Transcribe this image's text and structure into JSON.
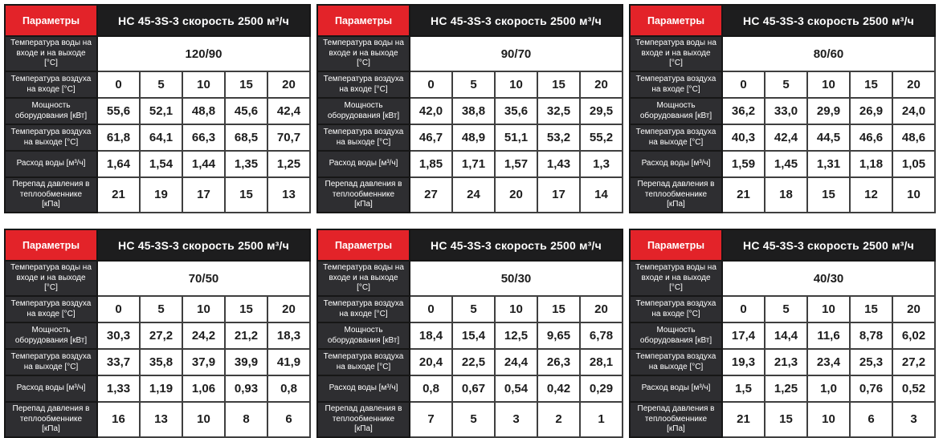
{
  "labels": {
    "parameters": "Параметры",
    "title": "НС 45-3S-3 скорость 2500 м³/ч",
    "water_temp": "Температура воды на входе и на выходе [°С]",
    "air_in": "Температура воздуха на входе [°С]",
    "power": "Мощность оборудования [кВт]",
    "air_out": "Температура воздуха на выходе [°С]",
    "water_flow": "Расход воды [м³/ч]",
    "pressure_drop": "Перепад давления в теплообменнике [кПа]"
  },
  "air_in_values": [
    "0",
    "5",
    "10",
    "15",
    "20"
  ],
  "tables": [
    {
      "water_temp": "120/90",
      "power": [
        "55,6",
        "52,1",
        "48,8",
        "45,6",
        "42,4"
      ],
      "air_out": [
        "61,8",
        "64,1",
        "66,3",
        "68,5",
        "70,7"
      ],
      "water_flow": [
        "1,64",
        "1,54",
        "1,44",
        "1,35",
        "1,25"
      ],
      "pressure_drop": [
        "21",
        "19",
        "17",
        "15",
        "13"
      ]
    },
    {
      "water_temp": "90/70",
      "power": [
        "42,0",
        "38,8",
        "35,6",
        "32,5",
        "29,5"
      ],
      "air_out": [
        "46,7",
        "48,9",
        "51,1",
        "53,2",
        "55,2"
      ],
      "water_flow": [
        "1,85",
        "1,71",
        "1,57",
        "1,43",
        "1,3"
      ],
      "pressure_drop": [
        "27",
        "24",
        "20",
        "17",
        "14"
      ]
    },
    {
      "water_temp": "80/60",
      "power": [
        "36,2",
        "33,0",
        "29,9",
        "26,9",
        "24,0"
      ],
      "air_out": [
        "40,3",
        "42,4",
        "44,5",
        "46,6",
        "48,6"
      ],
      "water_flow": [
        "1,59",
        "1,45",
        "1,31",
        "1,18",
        "1,05"
      ],
      "pressure_drop": [
        "21",
        "18",
        "15",
        "12",
        "10"
      ]
    },
    {
      "water_temp": "70/50",
      "power": [
        "30,3",
        "27,2",
        "24,2",
        "21,2",
        "18,3"
      ],
      "air_out": [
        "33,7",
        "35,8",
        "37,9",
        "39,9",
        "41,9"
      ],
      "water_flow": [
        "1,33",
        "1,19",
        "1,06",
        "0,93",
        "0,8"
      ],
      "pressure_drop": [
        "16",
        "13",
        "10",
        "8",
        "6"
      ]
    },
    {
      "water_temp": "50/30",
      "power": [
        "18,4",
        "15,4",
        "12,5",
        "9,65",
        "6,78"
      ],
      "air_out": [
        "20,4",
        "22,5",
        "24,4",
        "26,3",
        "28,1"
      ],
      "water_flow": [
        "0,8",
        "0,67",
        "0,54",
        "0,42",
        "0,29"
      ],
      "pressure_drop": [
        "7",
        "5",
        "3",
        "2",
        "1"
      ]
    },
    {
      "water_temp": "40/30",
      "power": [
        "17,4",
        "14,4",
        "11,6",
        "8,78",
        "6,02"
      ],
      "air_out": [
        "19,3",
        "21,3",
        "23,4",
        "25,3",
        "27,2"
      ],
      "water_flow": [
        "1,5",
        "1,25",
        "1,0",
        "0,76",
        "0,52"
      ],
      "pressure_drop": [
        "21",
        "15",
        "10",
        "6",
        "3"
      ]
    }
  ],
  "colors": {
    "accent_red": "#e32329",
    "title_black": "#1d1d1e",
    "label_dark": "#2e2e31"
  }
}
